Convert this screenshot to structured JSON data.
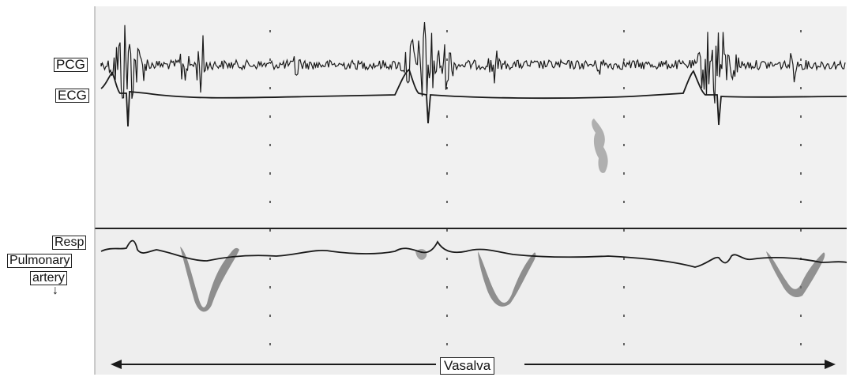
{
  "labels": {
    "pcg": "PCG",
    "ecg": "ECG",
    "resp": "Resp",
    "pulmonary_line1": "Pulmonary",
    "pulmonary_line2": "artery",
    "vasalva": "Vasalva"
  },
  "icons": {
    "direction_arrow": "down-arrow-icon"
  },
  "colors": {
    "background": "#ffffff",
    "panel": "#f1f1f1",
    "trace": "#1a1a1a",
    "doppler": "#6e6e6e"
  }
}
